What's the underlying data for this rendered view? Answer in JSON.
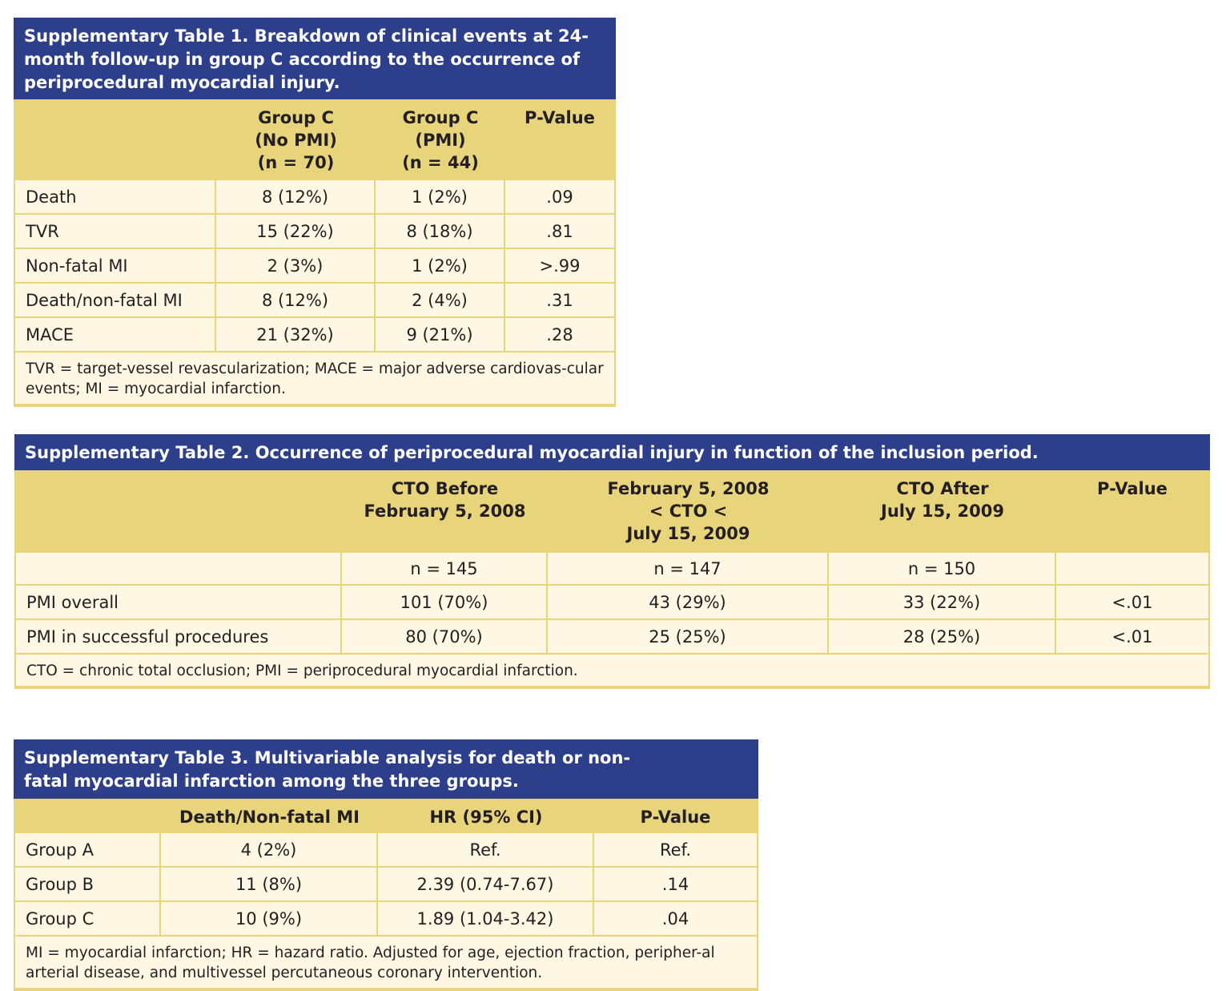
{
  "tables": [
    {
      "title": "Supplementary Table 1. Breakdown of clinical events at 24-month follow-up in group C according to the occurrence of periprocedural myocardial injury.",
      "columns": [
        [
          "Group C",
          "(No PMI)",
          "(n = 70)"
        ],
        [
          "Group C",
          "(PMI)",
          "(n = 44)"
        ],
        [
          "P-Value"
        ]
      ],
      "rows": [
        [
          "Death",
          "8 (12%)",
          "1 (2%)",
          ".09"
        ],
        [
          "TVR",
          "15 (22%)",
          "8 (18%)",
          ".81"
        ],
        [
          "Non-fatal MI",
          "2 (3%)",
          "1 (2%)",
          ">.99"
        ],
        [
          "Death/non-fatal MI",
          "8 (12%)",
          "2 (4%)",
          ".31"
        ],
        [
          "MACE",
          "21 (32%)",
          "9 (21%)",
          ".28"
        ]
      ],
      "footnote": "TVR = target-vessel revascularization; MACE = major adverse cardiovas-cular events; MI = myocardial infarction."
    },
    {
      "title": "Supplementary Table 2. Occurrence of periprocedural myocardial injury in function of the inclusion period.",
      "columns": [
        [
          "CTO Before",
          "February 5, 2008"
        ],
        [
          "February 5, 2008",
          "< CTO <",
          "July 15, 2009"
        ],
        [
          "CTO After",
          "July 15, 2009"
        ],
        [
          "P-Value"
        ]
      ],
      "n_row": [
        "n = 145",
        "n = 147",
        "n = 150"
      ],
      "rows": [
        [
          "PMI overall",
          "101 (70%)",
          "43 (29%)",
          "33 (22%)",
          "<.01"
        ],
        [
          "PMI in successful procedures",
          "80 (70%)",
          "25 (25%)",
          "28 (25%)",
          "<.01"
        ]
      ],
      "footnote": "CTO = chronic total occlusion; PMI = periprocedural myocardial infarction."
    },
    {
      "title": "Supplementary Table 3. Multivariable analysis for death or non-fatal myocardial infarction among the three groups.",
      "columns": [
        [
          "Death/Non-fatal MI"
        ],
        [
          "HR (95% CI)"
        ],
        [
          "P-Value"
        ]
      ],
      "rows": [
        [
          "Group A",
          "4 (2%)",
          "Ref.",
          "Ref."
        ],
        [
          "Group B",
          "11 (8%)",
          "2.39 (0.74-7.67)",
          ".14"
        ],
        [
          "Group C",
          "10 (9%)",
          "1.89 (1.04-3.42)",
          ".04"
        ]
      ],
      "footnote": "MI = myocardial infarction; HR = hazard ratio. Adjusted for age, ejection fraction, peripher-al arterial disease, and multivessel percutaneous coronary intervention."
    }
  ]
}
